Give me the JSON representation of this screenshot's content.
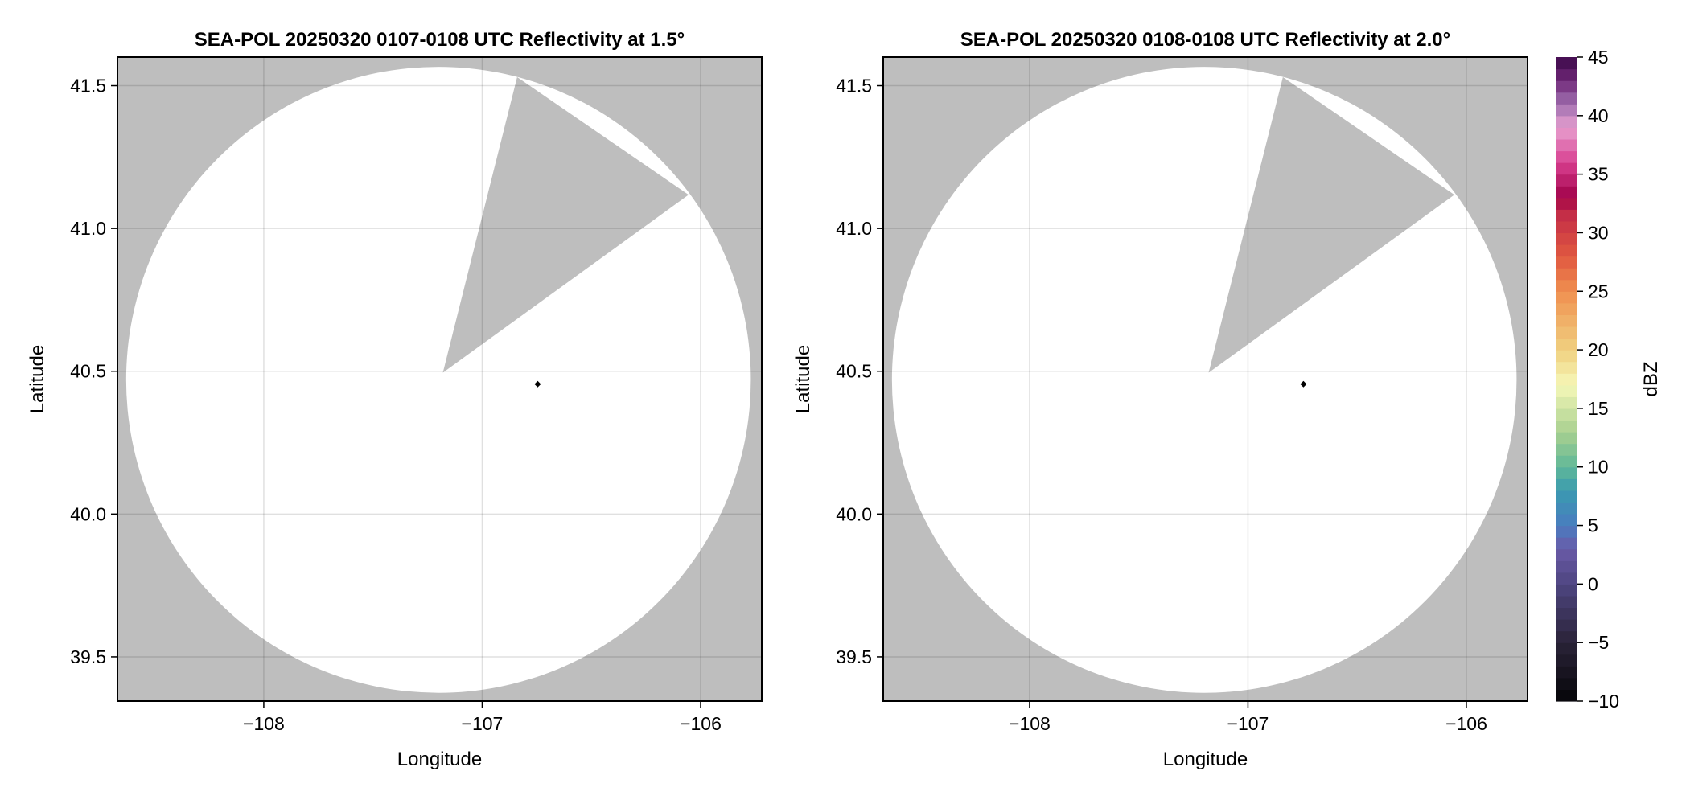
{
  "chart_data": [
    {
      "type": "heatmap",
      "title": "SEA-POL 20250320 0107-0108 UTC Reflectivity at 1.5°",
      "xlabel": "Longitude",
      "ylabel": "Latitude",
      "xlim": [
        -108.67,
        -105.72
      ],
      "ylim": [
        39.345,
        41.6
      ],
      "xticks": [
        -108,
        -107,
        -106
      ],
      "xtick_labels": [
        "−108",
        "−107",
        "−106"
      ],
      "yticks": [
        39.5,
        40.0,
        40.5,
        41.0,
        41.5
      ],
      "ytick_labels": [
        "39.5",
        "40.0",
        "40.5",
        "41.0",
        "41.5"
      ],
      "grid": true,
      "missing_color": "#bebebe",
      "coverage_color": "#ffffff",
      "coverage_circle": {
        "center": [
          -107.2,
          40.47
        ],
        "radius_lon": 1.43,
        "radius_lat": 1.096
      },
      "blocked_sector": [
        [
          -107.18,
          40.495
        ],
        [
          -106.84,
          41.53
        ],
        [
          -106.055,
          41.118
        ]
      ],
      "marker": {
        "lon": -106.746,
        "lat": 40.455,
        "color": "#000000"
      }
    },
    {
      "type": "heatmap",
      "title": "SEA-POL 20250320 0108-0108 UTC Reflectivity at 2.0°",
      "xlabel": "Longitude",
      "ylabel": "Latitude",
      "xlim": [
        -108.67,
        -105.72
      ],
      "ylim": [
        39.345,
        41.6
      ],
      "xticks": [
        -108,
        -107,
        -106
      ],
      "xtick_labels": [
        "−108",
        "−107",
        "−106"
      ],
      "yticks": [
        39.5,
        40.0,
        40.5,
        41.0,
        41.5
      ],
      "ytick_labels": [
        "39.5",
        "40.0",
        "40.5",
        "41.0",
        "41.5"
      ],
      "grid": true,
      "missing_color": "#bebebe",
      "coverage_color": "#ffffff",
      "coverage_circle": {
        "center": [
          -107.2,
          40.47
        ],
        "radius_lon": 1.43,
        "radius_lat": 1.096
      },
      "blocked_sector": [
        [
          -107.18,
          40.495
        ],
        [
          -106.84,
          41.53
        ],
        [
          -106.055,
          41.118
        ]
      ],
      "marker": {
        "lon": -106.746,
        "lat": 40.455,
        "color": "#000000"
      }
    }
  ],
  "colorbar": {
    "label": "dBZ",
    "range": [
      -10,
      45
    ],
    "step": 1,
    "ticks": [
      -10,
      -5,
      0,
      5,
      10,
      15,
      20,
      25,
      30,
      35,
      40,
      45
    ],
    "tick_labels": [
      "−10",
      "−5",
      "0",
      "5",
      "10",
      "15",
      "20",
      "25",
      "30",
      "35",
      "40",
      "45"
    ],
    "colormap_stops": [
      [
        -10,
        "#050508"
      ],
      [
        -5,
        "#2a2338"
      ],
      [
        0,
        "#4e4580"
      ],
      [
        3,
        "#6a5aa8"
      ],
      [
        5,
        "#4a7cc0"
      ],
      [
        8,
        "#3a9ab0"
      ],
      [
        10,
        "#60b898"
      ],
      [
        13,
        "#a8d090"
      ],
      [
        17,
        "#f6f8b8"
      ],
      [
        20,
        "#f0d080"
      ],
      [
        25,
        "#f09050"
      ],
      [
        28,
        "#e05840"
      ],
      [
        32,
        "#c02848"
      ],
      [
        33,
        "#a00048"
      ],
      [
        36,
        "#d84090"
      ],
      [
        39,
        "#e8a0d0"
      ],
      [
        41,
        "#a070b0"
      ],
      [
        43,
        "#702878"
      ],
      [
        45,
        "#3a0848"
      ]
    ]
  }
}
